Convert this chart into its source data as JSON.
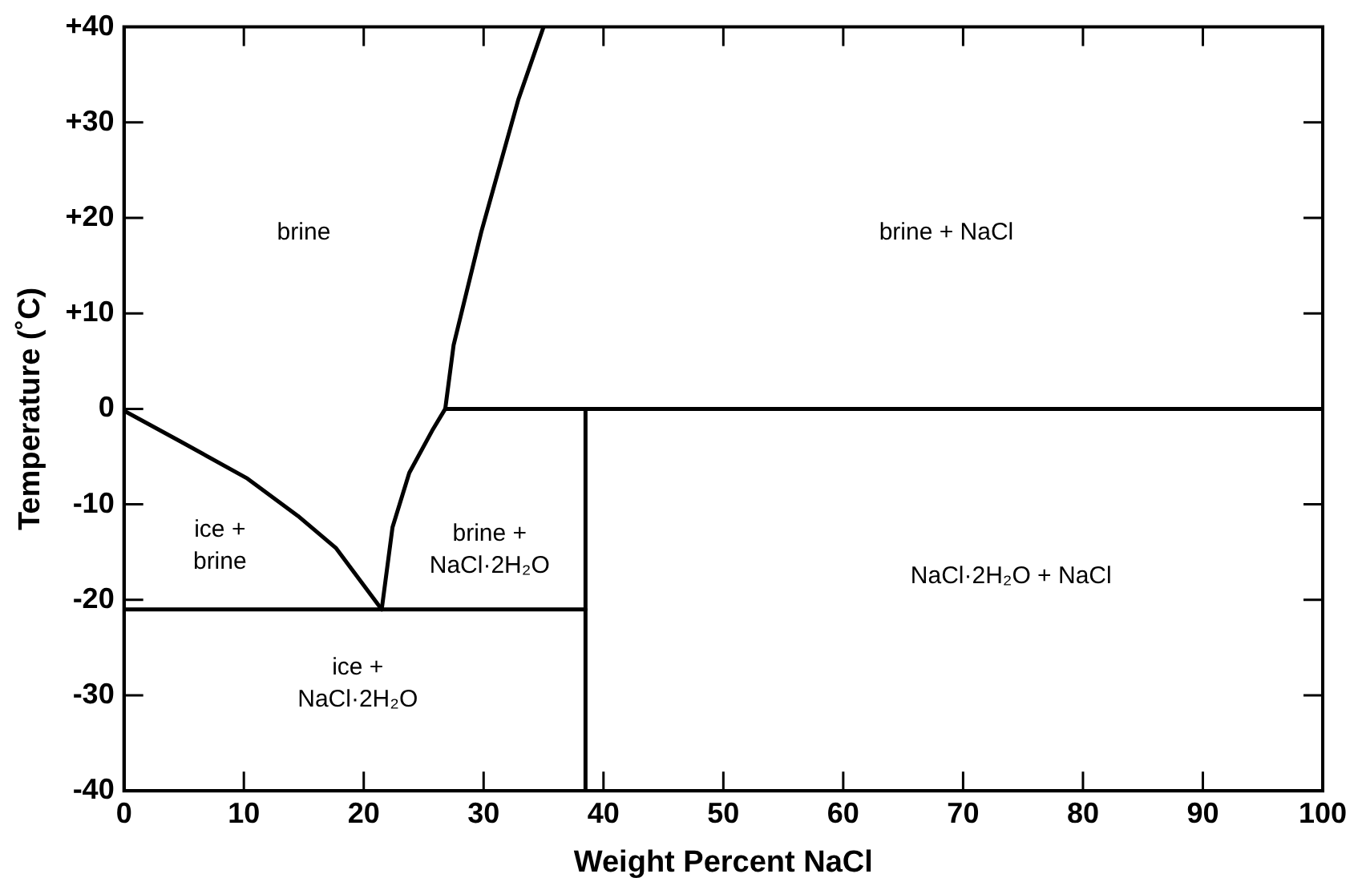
{
  "chart_data": {
    "type": "line",
    "xlabel": "Weight Percent NaCl",
    "ylabel": "Temperature (˚C)",
    "xlim": [
      0,
      100
    ],
    "ylim": [
      -40,
      40
    ],
    "xticks": [
      0,
      10,
      20,
      30,
      40,
      50,
      60,
      70,
      80,
      90,
      100
    ],
    "yticks": [
      {
        "value": -40,
        "label": "-40"
      },
      {
        "value": -30,
        "label": "-30"
      },
      {
        "value": -20,
        "label": "-20"
      },
      {
        "value": -10,
        "label": "-10"
      },
      {
        "value": 0,
        "label": "0"
      },
      {
        "value": 10,
        "label": "+10"
      },
      {
        "value": 20,
        "label": "+20"
      },
      {
        "value": 30,
        "label": "+30"
      },
      {
        "value": 40,
        "label": "+40"
      }
    ],
    "marker": "none",
    "line_style": "solid",
    "series": [
      {
        "color": "#000000",
        "x": [
          0,
          4.7,
          10.3,
          14.5,
          17.7,
          21.5
        ],
        "values": [
          -0.2,
          -3.4,
          -7.3,
          -11.2,
          -14.6,
          -21
        ]
      },
      {
        "color": "#000000",
        "x": [
          21.5,
          22.4,
          23.8,
          25.7,
          26.8,
          27.5,
          29.8,
          32.9,
          35
        ],
        "values": [
          -21,
          -12.4,
          -6.7,
          -2.3,
          0,
          6.7,
          18.5,
          32.4,
          40
        ]
      },
      {
        "color": "#000000",
        "x": [
          0,
          38.5
        ],
        "values": [
          -21,
          -21
        ]
      },
      {
        "color": "#000000",
        "x": [
          26.8,
          100
        ],
        "values": [
          0,
          0
        ]
      },
      {
        "color": "#000000",
        "x": [
          38.5,
          38.5
        ],
        "values": [
          0,
          -40
        ]
      }
    ],
    "annotations": [
      "brine",
      "brine + NaCl",
      "ice +\nbrine",
      "brine +\nNaCl·2H₂O",
      "ice +\nNaCl·2H₂O",
      "NaCl·2H₂O + NaCl"
    ]
  }
}
